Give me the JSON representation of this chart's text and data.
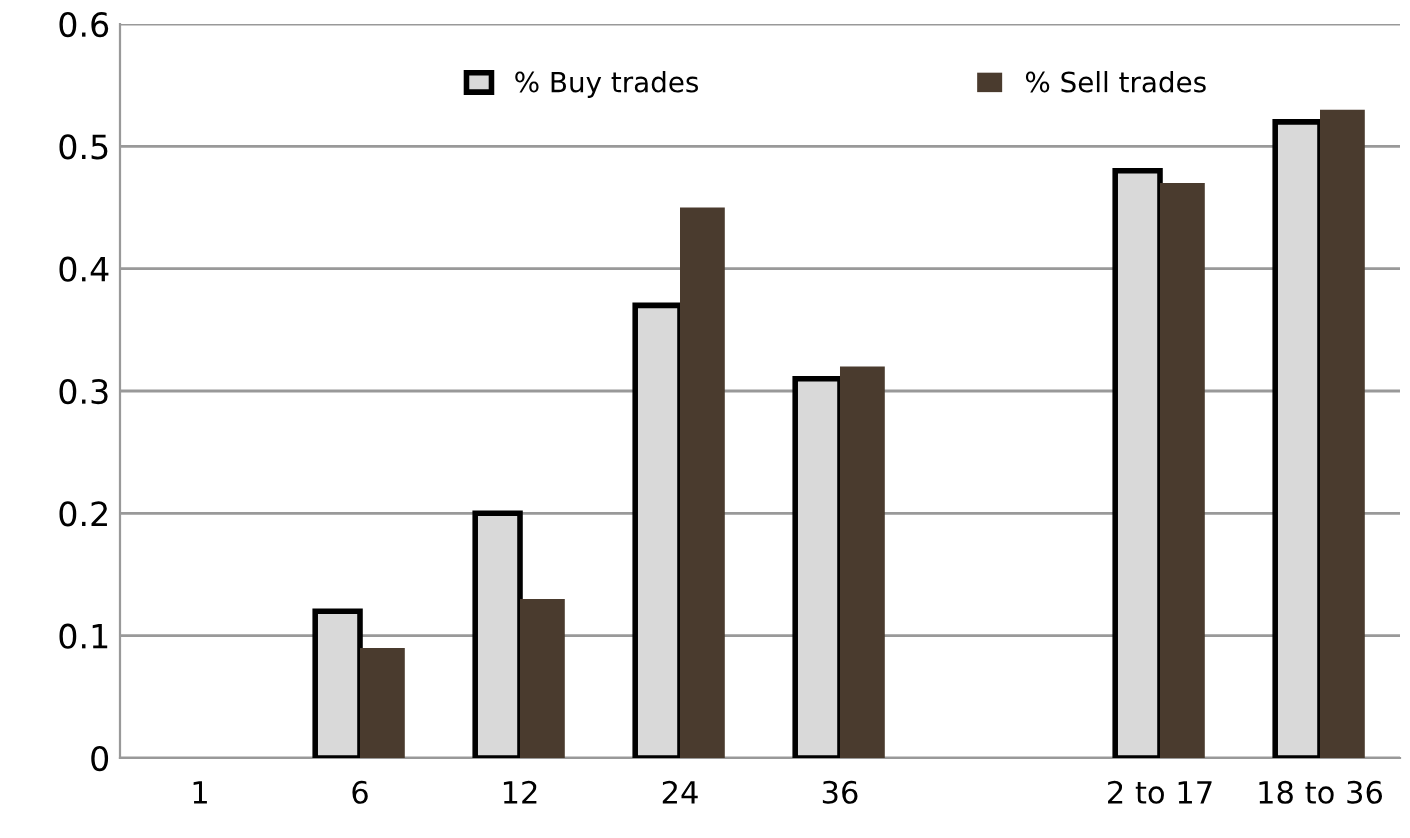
{
  "chart_data": {
    "type": "bar",
    "categories": [
      "1",
      "6",
      "12",
      "24",
      "36",
      null,
      "2 to 17",
      "18 to 36"
    ],
    "series": [
      {
        "name": "% Buy trades",
        "color": "#d9d9d9",
        "values": [
          0,
          0.12,
          0.2,
          0.37,
          0.31,
          null,
          0.48,
          0.52
        ]
      },
      {
        "name": "% Sell trades",
        "color": "#4a3b2e",
        "values": [
          0,
          0.09,
          0.13,
          0.45,
          0.32,
          null,
          0.47,
          0.53
        ]
      }
    ],
    "ylim": [
      0,
      0.6
    ],
    "yticks": [
      0,
      0.1,
      0.2,
      0.3,
      0.4,
      0.5,
      0.6
    ],
    "grid": "y",
    "legend": "top"
  }
}
